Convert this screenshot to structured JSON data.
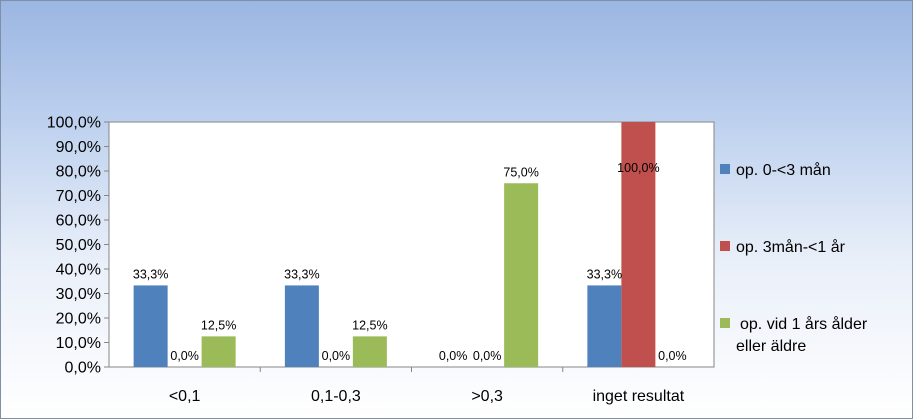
{
  "chart_data": {
    "type": "bar",
    "categories": [
      "<0,1",
      "0,1-0,3",
      ">0,3",
      "inget resultat"
    ],
    "series": [
      {
        "name": "op. 0-<3 mån",
        "values": [
          33.3,
          33.3,
          0.0,
          33.3
        ],
        "labels": [
          "33,3%",
          "33,3%",
          "0,0%",
          "33,3%"
        ],
        "color": "#4f81bd"
      },
      {
        "name": "op. 3mån-<1 år",
        "values": [
          0.0,
          0.0,
          0.0,
          100.0
        ],
        "labels": [
          "0,0%",
          "0,0%",
          "0,0%",
          "100,0%"
        ],
        "color": "#c0504d"
      },
      {
        "name_lines": [
          "op. vid 1 års ålder",
          "eller äldre"
        ],
        "values": [
          12.5,
          12.5,
          75.0,
          0.0
        ],
        "labels": [
          "12,5%",
          "12,5%",
          "75,0%",
          "0,0%"
        ],
        "color": "#9bbb59"
      }
    ],
    "ylim": [
      0,
      100
    ],
    "yticks": [
      "0,0%",
      "10,0%",
      "20,0%",
      "30,0%",
      "40,0%",
      "50,0%",
      "60,0%",
      "70,0%",
      "80,0%",
      "90,0%",
      "100,0%"
    ],
    "grid": false,
    "legend_position": "right"
  }
}
